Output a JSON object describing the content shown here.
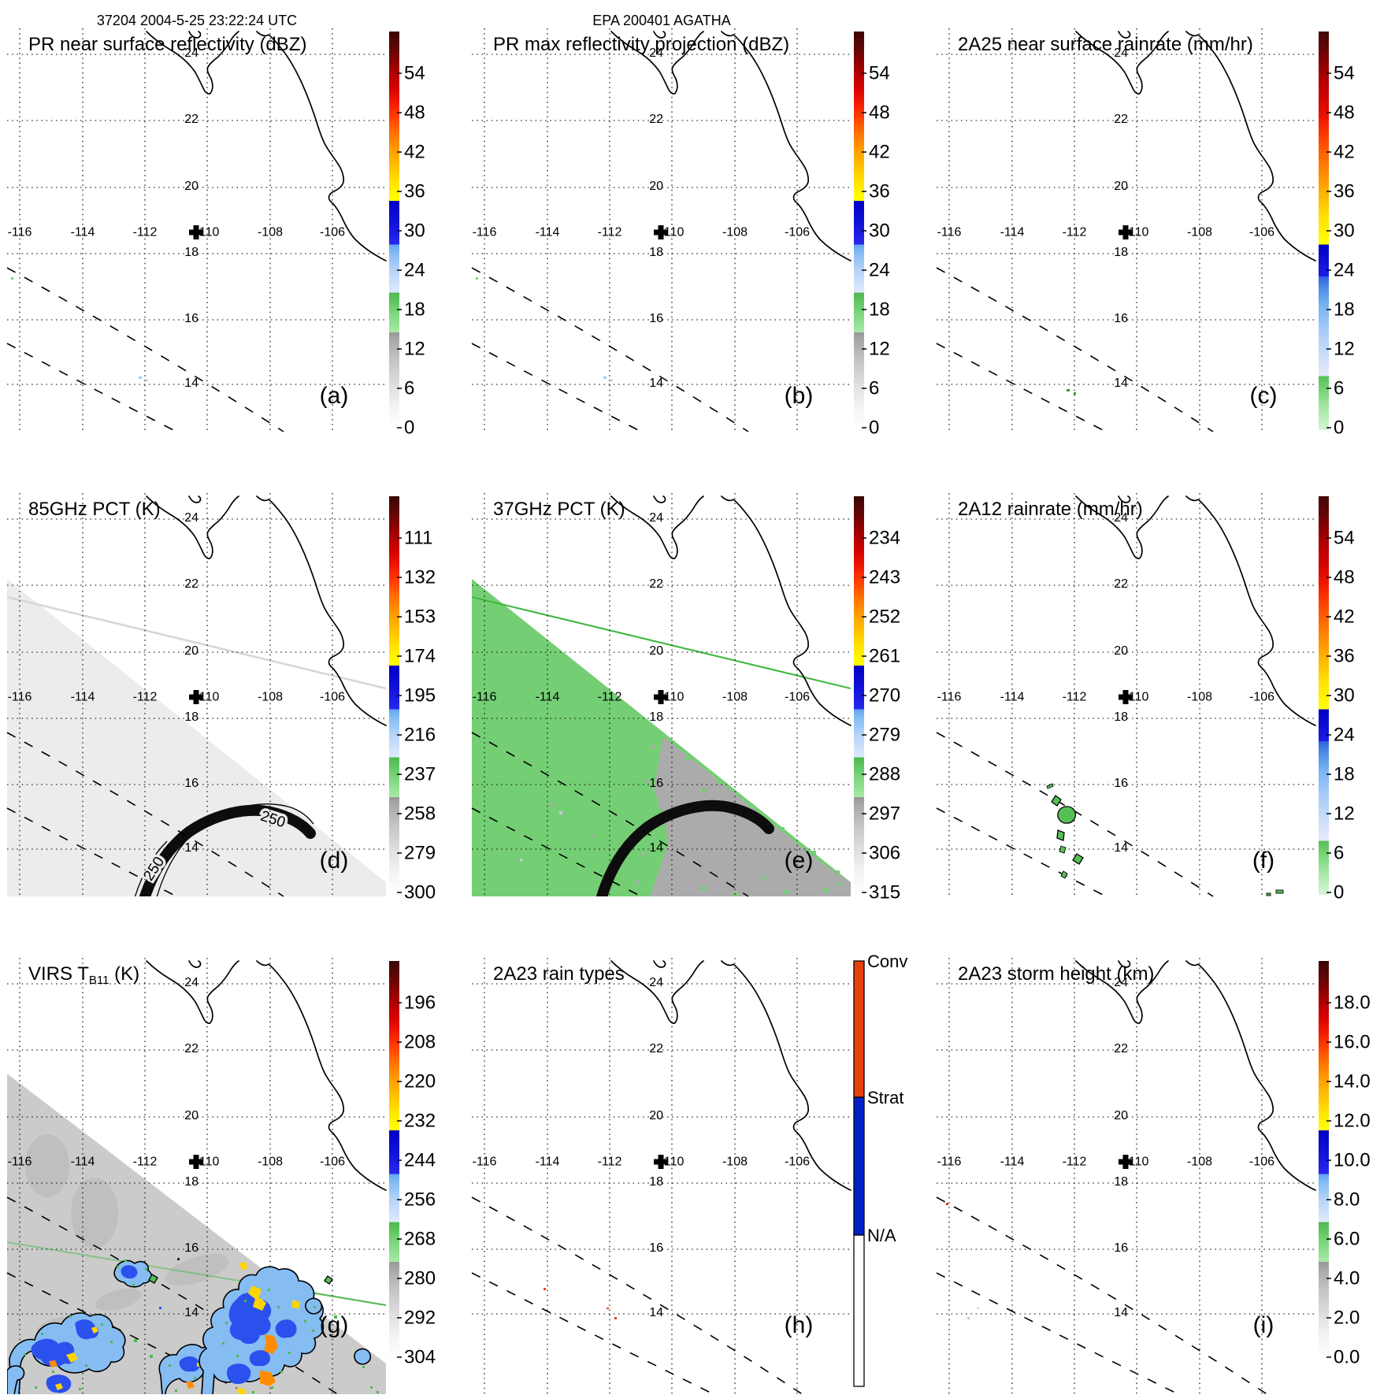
{
  "figure": {
    "scan_header": "37204 2004-5-25 23:22:24 UTC",
    "storm_header": "EPA 200401 AGATHA"
  },
  "map": {
    "lon_ticks": [
      "-116",
      "-114",
      "-112",
      "-110",
      "-108",
      "-106"
    ],
    "lat_ticks": [
      "24",
      "22",
      "20",
      "18",
      "16",
      "14"
    ]
  },
  "colors": {
    "conv_orange": "#e8400c",
    "strat_blue": "#0020cc",
    "swath_green_37": "#74cf74",
    "swath_gray_37": "#ababab",
    "swath_gray_85": "#ececec",
    "swath_gray_virs": "#cbcbcb"
  },
  "panels": [
    {
      "id": "a",
      "letter": "(a)",
      "title": "PR near surface reflectivity (dBZ)",
      "colorbar": {
        "type": "dbz",
        "ticks": [
          "54",
          "48",
          "42",
          "36",
          "30",
          "24",
          "18",
          "12",
          "6",
          "0"
        ]
      },
      "overlays": [
        "specks-pr"
      ]
    },
    {
      "id": "b",
      "letter": "(b)",
      "title": "PR max reflectivity projection (dBZ)",
      "colorbar": {
        "type": "dbz",
        "ticks": [
          "54",
          "48",
          "42",
          "36",
          "30",
          "24",
          "18",
          "12",
          "6",
          "0"
        ]
      },
      "overlays": [
        "specks-pr"
      ]
    },
    {
      "id": "c",
      "letter": "(c)",
      "title": "2A25 near surface rainrate (mm/hr)",
      "colorbar": {
        "type": "rain",
        "ticks": [
          "54",
          "48",
          "42",
          "36",
          "30",
          "24",
          "18",
          "12",
          "6",
          "0"
        ]
      },
      "overlays": [
        "specks-2a25"
      ]
    },
    {
      "id": "d",
      "letter": "(d)",
      "title": "85GHz PCT (K)",
      "colorbar": {
        "type": "dbz",
        "ticks": [
          "111",
          "132",
          "153",
          "174",
          "195",
          "216",
          "237",
          "258",
          "279",
          "300"
        ]
      },
      "overlays": [
        "swath85"
      ],
      "contour_label": "250"
    },
    {
      "id": "e",
      "letter": "(e)",
      "title": "37GHz PCT (K)",
      "colorbar": {
        "type": "dbz",
        "ticks": [
          "234",
          "243",
          "252",
          "261",
          "270",
          "279",
          "288",
          "297",
          "306",
          "315"
        ]
      },
      "overlays": [
        "swath37"
      ]
    },
    {
      "id": "f",
      "letter": "(f)",
      "title": "2A12 rainrate (mm/hr)",
      "colorbar": {
        "type": "rain",
        "ticks": [
          "54",
          "48",
          "42",
          "36",
          "30",
          "24",
          "18",
          "12",
          "6",
          "0"
        ]
      },
      "overlays": [
        "blobs12"
      ]
    },
    {
      "id": "g",
      "letter": "(g)",
      "title": "VIRS T",
      "title_sub": "B11",
      "title_end": " (K)",
      "colorbar": {
        "type": "dbz",
        "ticks": [
          "196",
          "208",
          "220",
          "232",
          "244",
          "256",
          "268",
          "280",
          "292",
          "304"
        ]
      },
      "overlays": [
        "virs",
        "virs-blobs"
      ]
    },
    {
      "id": "h",
      "letter": "(h)",
      "title": "2A23 rain types",
      "colorbar": {
        "type": "raintype",
        "labels": [
          "Conv",
          "Strat",
          "N/A"
        ]
      },
      "overlays": [
        "specks-2a23"
      ]
    },
    {
      "id": "i",
      "letter": "(i)",
      "title": "2A23 storm height (km)",
      "colorbar": {
        "type": "dbz",
        "ticks": [
          "18.0",
          "16.0",
          "14.0",
          "12.0",
          "10.0",
          "8.0",
          "6.0",
          "4.0",
          "2.0",
          "0.0"
        ]
      },
      "overlays": [
        "specks-height"
      ]
    }
  ],
  "chart_data": [
    {
      "type": "heatmap",
      "title": "PR near surface reflectivity (dBZ)",
      "panel": "(a)",
      "x_range": [
        -117,
        -104.5
      ],
      "y_range": [
        12.8,
        24.8
      ],
      "colorbar_ticks": [
        0,
        6,
        12,
        18,
        24,
        30,
        36,
        42,
        48,
        54
      ],
      "features": "nearly empty swath; two dashed swath-edge lines; few weak echoes (~24 dBZ) near (-111.6, 14.2)"
    },
    {
      "type": "heatmap",
      "title": "PR max reflectivity projection (dBZ)",
      "panel": "(b)",
      "x_range": [
        -117,
        -104.5
      ],
      "y_range": [
        12.8,
        24.8
      ],
      "colorbar_ticks": [
        0,
        6,
        12,
        18,
        24,
        30,
        36,
        42,
        48,
        54
      ],
      "features": "same tiny weak echoes near (-111.6, 14.2)"
    },
    {
      "type": "heatmap",
      "title": "2A25 near surface rainrate (mm/hr)",
      "panel": "(c)",
      "x_range": [
        -117,
        -104.5
      ],
      "y_range": [
        12.8,
        24.8
      ],
      "colorbar_ticks": [
        0,
        6,
        12,
        18,
        24,
        30,
        36,
        42,
        48,
        54
      ],
      "features": "light rain specks (~2-4 mm/hr) near (-111.6, 13.9)"
    },
    {
      "type": "heatmap",
      "title": "85GHz PCT (K)",
      "panel": "(d)",
      "colorbar_ticks": [
        300,
        279,
        258,
        237,
        216,
        195,
        174,
        153,
        132,
        111
      ],
      "features": "TMI swath (PCT ~290-300 K, near-white) over lower-left; thick black 250 K contour arc labeled 250 near (-109.5, 13.8)"
    },
    {
      "type": "heatmap",
      "title": "37GHz PCT (K)",
      "panel": "(e)",
      "colorbar_ticks": [
        315,
        306,
        297,
        288,
        279,
        270,
        261,
        252,
        243,
        234
      ],
      "features": "green swath (~285-290 K) lower-left, gray region (~300 K) lower-right, black contour arc; green swath-edge line across top"
    },
    {
      "type": "heatmap",
      "title": "2A12 rainrate (mm/hr)",
      "panel": "(f)",
      "colorbar_ticks": [
        0,
        6,
        12,
        18,
        24,
        30,
        36,
        42,
        48,
        54
      ],
      "features": "chain of small light-rain cells (~2-5 mm/hr) from (-112.3, 15.6) to (-112, 13.7)"
    },
    {
      "type": "heatmap",
      "title": "VIRS TB11 (K)",
      "panel": "(g)",
      "colorbar_ticks": [
        304,
        292,
        280,
        268,
        256,
        244,
        232,
        220,
        208,
        196
      ],
      "features": "gray cloud field (~285-295 K) with cold convective clusters (blue 240-255 K, yellow/orange cores 215-230 K) along 13-15N"
    },
    {
      "type": "heatmap",
      "title": "2A23 rain types",
      "panel": "(h)",
      "categories": [
        "Conv",
        "Strat",
        "N/A"
      ],
      "features": "almost all N/A; a few convective pixels near (-114.5, 14.6) and (-112.3, 14.1)"
    },
    {
      "type": "heatmap",
      "title": "2A23 storm height (km)",
      "panel": "(i)",
      "colorbar_ticks": [
        0,
        2,
        4,
        6,
        8,
        10,
        12,
        14,
        16,
        18
      ],
      "features": "nearly empty; isolated low-top specks (~2-6 km) in the swath"
    }
  ]
}
